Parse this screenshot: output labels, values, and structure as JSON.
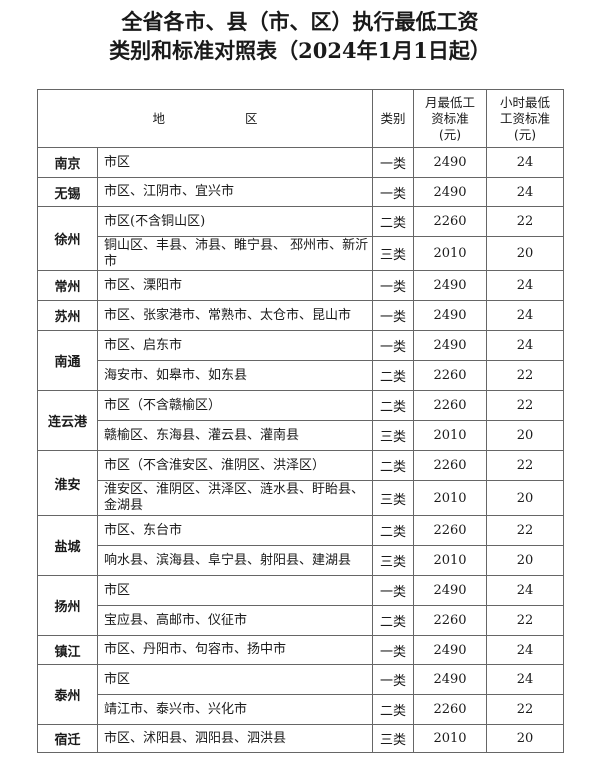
{
  "title": {
    "line1": "全省各市、县（市、区）执行最低工资",
    "line2": "类别和标准对照表（2024年1月1日起）"
  },
  "table": {
    "headers": {
      "area_char1": "地",
      "area_char2": "区",
      "category": "类别",
      "monthly": "月最低工资标准(元)",
      "hourly": "小时最低工资标准(元)"
    },
    "groups": [
      {
        "city": "南京",
        "rows": [
          {
            "district": "市区",
            "category": "一类",
            "monthly": "2490",
            "hourly": "24"
          }
        ]
      },
      {
        "city": "无锡",
        "rows": [
          {
            "district": "市区、江阴市、宜兴市",
            "category": "一类",
            "monthly": "2490",
            "hourly": "24"
          }
        ]
      },
      {
        "city": "徐州",
        "rows": [
          {
            "district": "市区(不含铜山区)",
            "category": "二类",
            "monthly": "2260",
            "hourly": "22"
          },
          {
            "district": "铜山区、丰县、沛县、睢宁县、 邳州市、新沂市",
            "category": "三类",
            "monthly": "2010",
            "hourly": "20"
          }
        ]
      },
      {
        "city": "常州",
        "rows": [
          {
            "district": "市区、溧阳市",
            "category": "一类",
            "monthly": "2490",
            "hourly": "24"
          }
        ]
      },
      {
        "city": "苏州",
        "rows": [
          {
            "district": "市区、张家港市、常熟市、太仓市、昆山市",
            "category": "一类",
            "monthly": "2490",
            "hourly": "24"
          }
        ]
      },
      {
        "city": "南通",
        "rows": [
          {
            "district": "市区、启东市",
            "category": "一类",
            "monthly": "2490",
            "hourly": "24"
          },
          {
            "district": "海安市、如皋市、如东县",
            "category": "二类",
            "monthly": "2260",
            "hourly": "22"
          }
        ]
      },
      {
        "city": "连云港",
        "rows": [
          {
            "district": "市区（不含赣榆区）",
            "category": "二类",
            "monthly": "2260",
            "hourly": "22"
          },
          {
            "district": "赣榆区、东海县、灌云县、灌南县",
            "category": "三类",
            "monthly": "2010",
            "hourly": "20"
          }
        ]
      },
      {
        "city": "淮安",
        "rows": [
          {
            "district": "市区（不含淮安区、淮阴区、洪泽区）",
            "category": "二类",
            "monthly": "2260",
            "hourly": "22"
          },
          {
            "district": "淮安区、淮阴区、洪泽区、涟水县、盱眙县、金湖县",
            "category": "三类",
            "monthly": "2010",
            "hourly": "20"
          }
        ]
      },
      {
        "city": "盐城",
        "rows": [
          {
            "district": "市区、东台市",
            "category": "二类",
            "monthly": "2260",
            "hourly": "22"
          },
          {
            "district": "响水县、滨海县、阜宁县、射阳县、建湖县",
            "category": "三类",
            "monthly": "2010",
            "hourly": "20"
          }
        ]
      },
      {
        "city": "扬州",
        "rows": [
          {
            "district": "市区",
            "category": "一类",
            "monthly": "2490",
            "hourly": "24"
          },
          {
            "district": "宝应县、高邮市、仪征市",
            "category": "二类",
            "monthly": "2260",
            "hourly": "22"
          }
        ]
      },
      {
        "city": "镇江",
        "rows": [
          {
            "district": "市区、丹阳市、句容市、扬中市",
            "category": "一类",
            "monthly": "2490",
            "hourly": "24"
          }
        ]
      },
      {
        "city": "泰州",
        "rows": [
          {
            "district": "市区",
            "category": "一类",
            "monthly": "2490",
            "hourly": "24"
          },
          {
            "district": "靖江市、泰兴市、兴化市",
            "category": "二类",
            "monthly": "2260",
            "hourly": "22"
          }
        ]
      },
      {
        "city": "宿迁",
        "rows": [
          {
            "district": "市区、沭阳县、泗阳县、泗洪县",
            "category": "三类",
            "monthly": "2010",
            "hourly": "20"
          }
        ]
      }
    ]
  }
}
